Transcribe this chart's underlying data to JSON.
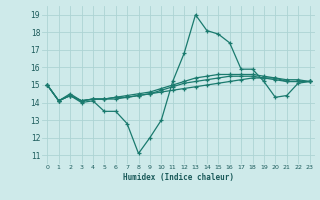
{
  "background_color": "#ceeaea",
  "grid_color": "#add4d4",
  "line_color": "#1a7a6e",
  "xlabel": "Humidex (Indice chaleur)",
  "xlim": [
    -0.5,
    23.5
  ],
  "ylim": [
    10.5,
    19.5
  ],
  "yticks": [
    11,
    12,
    13,
    14,
    15,
    16,
    17,
    18,
    19
  ],
  "xticks": [
    0,
    1,
    2,
    3,
    4,
    5,
    6,
    7,
    8,
    9,
    10,
    11,
    12,
    13,
    14,
    15,
    16,
    17,
    18,
    19,
    20,
    21,
    22,
    23
  ],
  "lines": [
    {
      "x": [
        0,
        1,
        2,
        3,
        4,
        5,
        6,
        7,
        8,
        9,
        10,
        11,
        12,
        13,
        14,
        15,
        16,
        17,
        18,
        19,
        20,
        21,
        22,
        23
      ],
      "y": [
        15.0,
        14.1,
        14.4,
        14.0,
        14.1,
        13.5,
        13.5,
        12.8,
        11.1,
        12.0,
        13.0,
        15.2,
        16.8,
        19.0,
        18.1,
        17.9,
        17.4,
        15.9,
        15.9,
        15.2,
        14.3,
        14.4,
        15.1,
        15.2
      ]
    },
    {
      "x": [
        0,
        1,
        2,
        3,
        4,
        5,
        6,
        7,
        8,
        9,
        10,
        11,
        12,
        13,
        14,
        15,
        16,
        17,
        18,
        19,
        20,
        21,
        22,
        23
      ],
      "y": [
        15.0,
        14.1,
        14.4,
        14.1,
        14.2,
        14.2,
        14.2,
        14.3,
        14.4,
        14.5,
        14.6,
        14.7,
        14.8,
        14.9,
        15.0,
        15.1,
        15.2,
        15.3,
        15.4,
        15.4,
        15.4,
        15.3,
        15.3,
        15.2
      ]
    },
    {
      "x": [
        0,
        1,
        2,
        3,
        4,
        5,
        6,
        7,
        8,
        9,
        10,
        11,
        12,
        13,
        14,
        15,
        16,
        17,
        18,
        19,
        20,
        21,
        22,
        23
      ],
      "y": [
        15.0,
        14.1,
        14.4,
        14.1,
        14.2,
        14.2,
        14.3,
        14.3,
        14.4,
        14.5,
        14.7,
        14.9,
        15.1,
        15.2,
        15.3,
        15.4,
        15.5,
        15.5,
        15.5,
        15.4,
        15.3,
        15.2,
        15.2,
        15.2
      ]
    },
    {
      "x": [
        0,
        1,
        2,
        3,
        4,
        5,
        6,
        7,
        8,
        9,
        10,
        11,
        12,
        13,
        14,
        15,
        16,
        17,
        18,
        19,
        20,
        21,
        22,
        23
      ],
      "y": [
        15.0,
        14.1,
        14.5,
        14.1,
        14.2,
        14.2,
        14.3,
        14.4,
        14.5,
        14.6,
        14.8,
        15.0,
        15.2,
        15.4,
        15.5,
        15.6,
        15.6,
        15.6,
        15.6,
        15.5,
        15.4,
        15.2,
        15.2,
        15.2
      ]
    }
  ]
}
